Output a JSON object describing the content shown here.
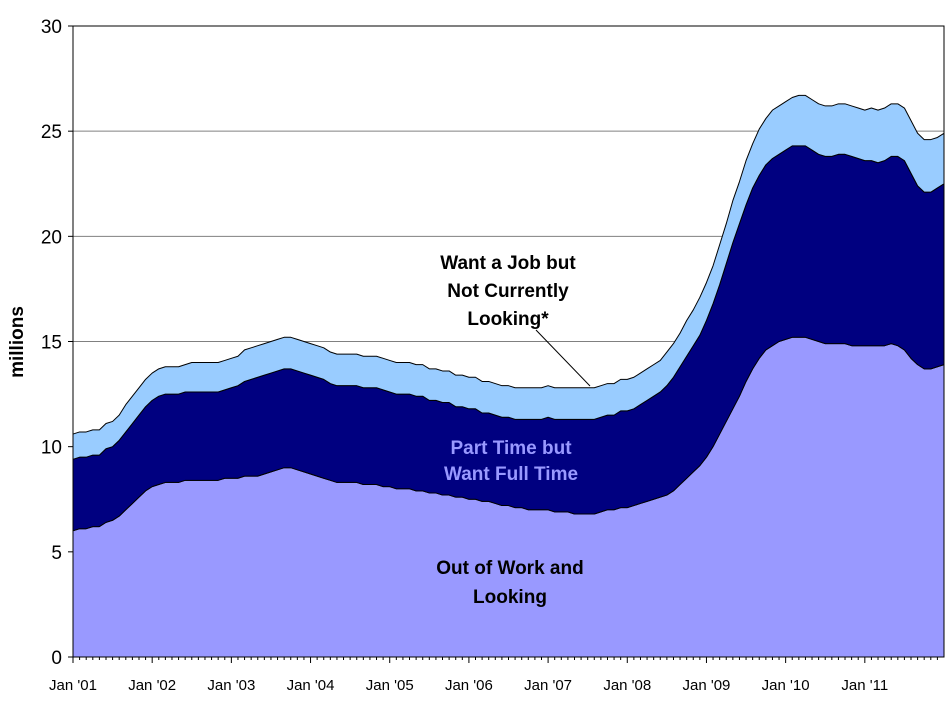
{
  "chart_data": {
    "type": "area",
    "stacked": true,
    "ylabel": "millions",
    "xlabel": "",
    "title": "",
    "ylim": [
      0,
      30
    ],
    "yticks": [
      "0",
      "5",
      "10",
      "15",
      "20",
      "25",
      "30"
    ],
    "xtick_labels": [
      "Jan '01",
      "Jan '02",
      "Jan '03",
      "Jan '04",
      "Jan '05",
      "Jan '06",
      "Jan '07",
      "Jan '08",
      "Jan '09",
      "Jan '10",
      "Jan '11"
    ],
    "grid": true,
    "legend": "none",
    "x_start": "Jan '01",
    "x_frequency": "monthly",
    "series": [
      {
        "name": "Out of Work and Looking",
        "color": "#9999ff",
        "label_lines": [
          "Out of Work and",
          "Looking"
        ],
        "label_color": "#000000",
        "values": [
          6.0,
          6.1,
          6.1,
          6.2,
          6.2,
          6.4,
          6.5,
          6.7,
          7.0,
          7.3,
          7.6,
          7.9,
          8.1,
          8.2,
          8.3,
          8.3,
          8.3,
          8.4,
          8.4,
          8.4,
          8.4,
          8.4,
          8.4,
          8.5,
          8.5,
          8.5,
          8.6,
          8.6,
          8.6,
          8.7,
          8.8,
          8.9,
          9.0,
          9.0,
          8.9,
          8.8,
          8.7,
          8.6,
          8.5,
          8.4,
          8.3,
          8.3,
          8.3,
          8.3,
          8.2,
          8.2,
          8.2,
          8.1,
          8.1,
          8.0,
          8.0,
          8.0,
          7.9,
          7.9,
          7.8,
          7.8,
          7.7,
          7.7,
          7.6,
          7.6,
          7.5,
          7.5,
          7.4,
          7.4,
          7.3,
          7.2,
          7.2,
          7.1,
          7.1,
          7.0,
          7.0,
          7.0,
          7.0,
          6.9,
          6.9,
          6.9,
          6.8,
          6.8,
          6.8,
          6.8,
          6.9,
          7.0,
          7.0,
          7.1,
          7.1,
          7.2,
          7.3,
          7.4,
          7.5,
          7.6,
          7.7,
          7.9,
          8.2,
          8.5,
          8.8,
          9.1,
          9.5,
          10.0,
          10.6,
          11.2,
          11.8,
          12.4,
          13.1,
          13.7,
          14.2,
          14.6,
          14.8,
          15.0,
          15.1,
          15.2,
          15.2,
          15.2,
          15.1,
          15.0,
          14.9,
          14.9,
          14.9,
          14.9,
          14.8,
          14.8,
          14.8,
          14.8,
          14.8,
          14.8,
          14.9,
          14.8,
          14.6,
          14.2,
          13.9,
          13.7,
          13.7,
          13.8,
          13.9
        ]
      },
      {
        "name": "Part Time but Want Full Time",
        "color": "#000080",
        "label_lines": [
          "Part Time but",
          "Want Full Time"
        ],
        "label_color": "#9999ff",
        "values": [
          3.4,
          3.4,
          3.4,
          3.4,
          3.4,
          3.5,
          3.5,
          3.6,
          3.7,
          3.8,
          3.9,
          4.0,
          4.1,
          4.2,
          4.2,
          4.2,
          4.2,
          4.2,
          4.2,
          4.2,
          4.2,
          4.2,
          4.2,
          4.2,
          4.3,
          4.4,
          4.5,
          4.6,
          4.7,
          4.7,
          4.7,
          4.7,
          4.7,
          4.7,
          4.7,
          4.7,
          4.7,
          4.7,
          4.7,
          4.6,
          4.6,
          4.6,
          4.6,
          4.6,
          4.6,
          4.6,
          4.6,
          4.6,
          4.5,
          4.5,
          4.5,
          4.5,
          4.5,
          4.5,
          4.4,
          4.4,
          4.4,
          4.4,
          4.3,
          4.3,
          4.3,
          4.3,
          4.2,
          4.2,
          4.2,
          4.2,
          4.2,
          4.2,
          4.2,
          4.3,
          4.3,
          4.3,
          4.4,
          4.4,
          4.4,
          4.4,
          4.5,
          4.5,
          4.5,
          4.5,
          4.5,
          4.5,
          4.5,
          4.6,
          4.6,
          4.6,
          4.7,
          4.8,
          4.9,
          5.0,
          5.2,
          5.4,
          5.6,
          5.8,
          6.0,
          6.2,
          6.5,
          6.8,
          7.1,
          7.5,
          7.9,
          8.2,
          8.4,
          8.6,
          8.7,
          8.8,
          8.9,
          8.9,
          9.0,
          9.1,
          9.1,
          9.1,
          9.0,
          8.9,
          8.9,
          8.9,
          9.0,
          9.0,
          9.0,
          8.9,
          8.8,
          8.8,
          8.7,
          8.8,
          8.9,
          9.0,
          9.0,
          8.8,
          8.5,
          8.4,
          8.4,
          8.5,
          8.6
        ]
      },
      {
        "name": "Want a Job but Not Currently Looking*",
        "color": "#99ccff",
        "label_lines": [
          "Want a  Job but",
          "Not Currently",
          "Looking*"
        ],
        "label_color": "#000000",
        "values": [
          1.2,
          1.2,
          1.2,
          1.2,
          1.2,
          1.2,
          1.2,
          1.2,
          1.3,
          1.3,
          1.3,
          1.3,
          1.3,
          1.3,
          1.3,
          1.3,
          1.3,
          1.3,
          1.4,
          1.4,
          1.4,
          1.4,
          1.4,
          1.4,
          1.4,
          1.4,
          1.5,
          1.5,
          1.5,
          1.5,
          1.5,
          1.5,
          1.5,
          1.5,
          1.5,
          1.5,
          1.5,
          1.5,
          1.5,
          1.5,
          1.5,
          1.5,
          1.5,
          1.5,
          1.5,
          1.5,
          1.5,
          1.5,
          1.5,
          1.5,
          1.5,
          1.5,
          1.5,
          1.5,
          1.5,
          1.5,
          1.5,
          1.5,
          1.5,
          1.5,
          1.5,
          1.5,
          1.5,
          1.5,
          1.5,
          1.5,
          1.5,
          1.5,
          1.5,
          1.5,
          1.5,
          1.5,
          1.5,
          1.5,
          1.5,
          1.5,
          1.5,
          1.5,
          1.5,
          1.5,
          1.5,
          1.5,
          1.5,
          1.5,
          1.5,
          1.5,
          1.5,
          1.5,
          1.5,
          1.5,
          1.6,
          1.6,
          1.6,
          1.7,
          1.7,
          1.8,
          1.8,
          1.8,
          1.9,
          1.9,
          2.0,
          2.0,
          2.1,
          2.1,
          2.2,
          2.2,
          2.3,
          2.3,
          2.3,
          2.3,
          2.4,
          2.4,
          2.4,
          2.4,
          2.4,
          2.4,
          2.4,
          2.4,
          2.4,
          2.4,
          2.4,
          2.5,
          2.5,
          2.5,
          2.5,
          2.5,
          2.5,
          2.5,
          2.5,
          2.5,
          2.5,
          2.4,
          2.4
        ]
      }
    ]
  }
}
